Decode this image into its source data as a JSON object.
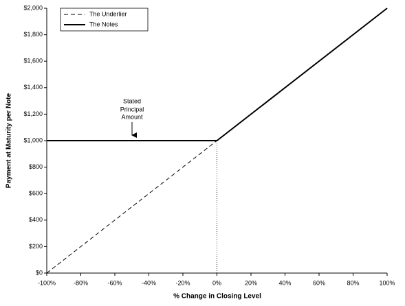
{
  "chart_data": {
    "type": "line",
    "x_label": "% Change in Closing Level",
    "y_label": "Payment at Maturity per Note",
    "annotation": [
      "Stated",
      "Principal",
      "Amount"
    ],
    "xlim": [
      -100,
      100
    ],
    "ylim": [
      0,
      2000
    ],
    "xticks": [
      {
        "value": -100,
        "label": "-100%"
      },
      {
        "value": -80,
        "label": "-80%"
      },
      {
        "value": -60,
        "label": "-60%"
      },
      {
        "value": -40,
        "label": "-40%"
      },
      {
        "value": -20,
        "label": "-20%"
      },
      {
        "value": 0,
        "label": "0%"
      },
      {
        "value": 20,
        "label": "20%"
      },
      {
        "value": 40,
        "label": "40%"
      },
      {
        "value": 60,
        "label": "60%"
      },
      {
        "value": 80,
        "label": "80%"
      },
      {
        "value": 100,
        "label": "100%"
      }
    ],
    "yticks": [
      {
        "value": 0,
        "label": "$0"
      },
      {
        "value": 200,
        "label": "$200"
      },
      {
        "value": 400,
        "label": "$400"
      },
      {
        "value": 600,
        "label": "$600"
      },
      {
        "value": 800,
        "label": "$800"
      },
      {
        "value": 1000,
        "label": "$1,000"
      },
      {
        "value": 1200,
        "label": "$1,200"
      },
      {
        "value": 1400,
        "label": "$1,400"
      },
      {
        "value": 1600,
        "label": "$1,600"
      },
      {
        "value": 1800,
        "label": "$1,800"
      },
      {
        "value": 2000,
        "label": "$2,000"
      }
    ],
    "legend": "upper left",
    "series": [
      {
        "name": "The Underlier",
        "color": "#000000",
        "dashed": true,
        "x": [
          -100,
          0,
          100
        ],
        "values": [
          0,
          1000,
          2000
        ]
      },
      {
        "name": "The Notes",
        "color": "#000000",
        "dashed": false,
        "x": [
          -100,
          0,
          100
        ],
        "values": [
          1000,
          1000,
          2000
        ]
      }
    ]
  }
}
